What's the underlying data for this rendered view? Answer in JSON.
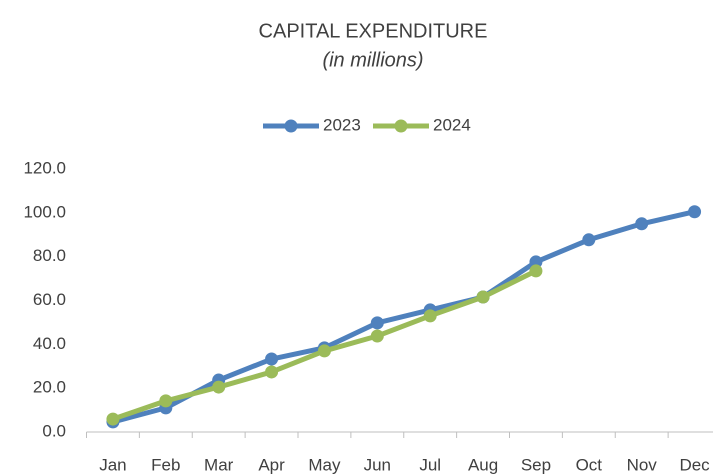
{
  "chart_data": {
    "type": "line",
    "title": "CAPITAL EXPENDITURE",
    "subtitle": "(in millions)",
    "categories": [
      "Jan",
      "Feb",
      "Mar",
      "Apr",
      "May",
      "Jun",
      "Jul",
      "Aug",
      "Sep",
      "Oct",
      "Nov",
      "Dec"
    ],
    "series": [
      {
        "name": "2023",
        "color": "#4f81bd",
        "values": [
          4.6,
          11,
          23.7,
          33.3,
          38.4,
          49.8,
          55.7,
          61.6,
          77.6,
          87.7,
          95,
          100.5
        ]
      },
      {
        "name": "2024",
        "color": "#9bbb59",
        "values": [
          5.9,
          14.2,
          20.5,
          27.4,
          37,
          43.8,
          53,
          61.6,
          73.5,
          null,
          null,
          null
        ]
      }
    ],
    "ylim": [
      0,
      120
    ],
    "yticks": [
      {
        "value": 0,
        "label": "0.0"
      },
      {
        "value": 20,
        "label": "20.0"
      },
      {
        "value": 40,
        "label": "40.0"
      },
      {
        "value": 60,
        "label": "60.0"
      },
      {
        "value": 80,
        "label": "80.0"
      },
      {
        "value": 100,
        "label": "100.0"
      },
      {
        "value": 120,
        "label": "120.0"
      }
    ],
    "legend": "top",
    "grid": false
  }
}
